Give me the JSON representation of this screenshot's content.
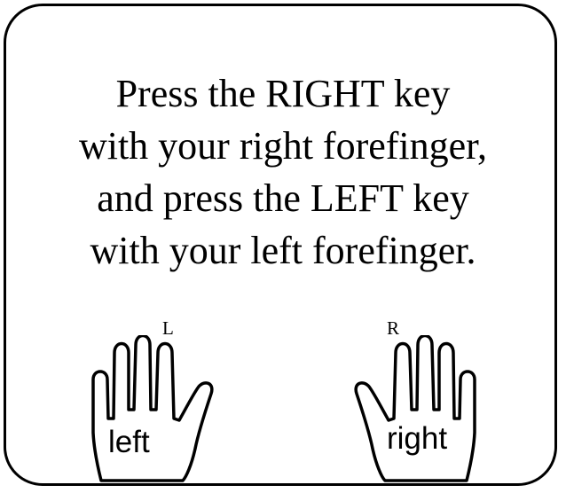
{
  "instructions": {
    "line1": "Press the RIGHT key",
    "line2": "with your right forefinger,",
    "line3": "and press the LEFT key",
    "line4": "with your left forefinger."
  },
  "keys": {
    "left": "L",
    "right": "R"
  },
  "hands": {
    "left_label": "left",
    "right_label": "right",
    "icon": "hand-icon"
  },
  "colors": {
    "ink": "#000000",
    "background": "#ffffff"
  }
}
